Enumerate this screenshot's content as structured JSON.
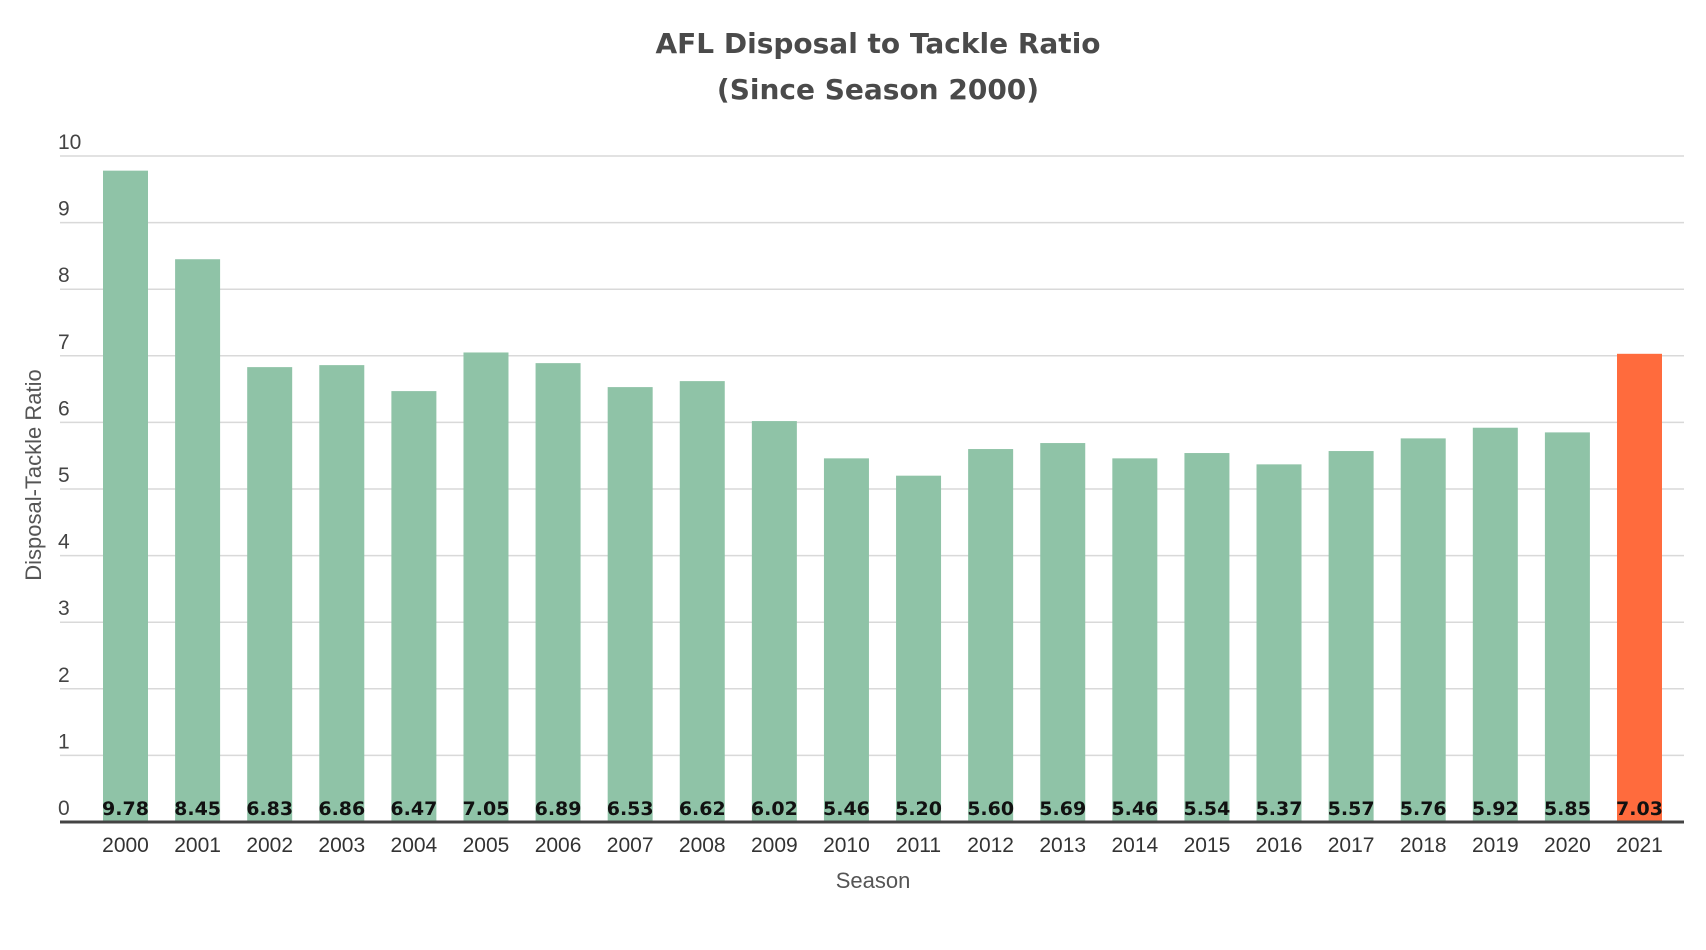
{
  "chart_data": {
    "type": "bar",
    "title": "AFL Disposal to Tackle Ratio",
    "subtitle": "(Since Season 2000)",
    "xlabel": "Season",
    "ylabel": "Disposal-Tackle Ratio",
    "ylim": [
      0,
      10
    ],
    "y_ticks": [
      "0",
      "1",
      "2",
      "3",
      "4",
      "5",
      "6",
      "7",
      "8",
      "9",
      "10"
    ],
    "grid": true,
    "legend": "none",
    "categories": [
      "2000",
      "2001",
      "2002",
      "2003",
      "2004",
      "2005",
      "2006",
      "2007",
      "2008",
      "2009",
      "2010",
      "2011",
      "2012",
      "2013",
      "2014",
      "2015",
      "2016",
      "2017",
      "2018",
      "2019",
      "2020",
      "2021"
    ],
    "values": [
      9.78,
      8.45,
      6.83,
      6.86,
      6.47,
      7.05,
      6.89,
      6.53,
      6.62,
      6.02,
      5.46,
      5.2,
      5.6,
      5.69,
      5.46,
      5.54,
      5.37,
      5.57,
      5.76,
      5.92,
      5.85,
      7.03
    ],
    "value_labels": [
      "9.78",
      "8.45",
      "6.83",
      "6.86",
      "6.47",
      "7.05",
      "6.89",
      "6.53",
      "6.62",
      "6.02",
      "5.46",
      "5.20",
      "5.60",
      "5.69",
      "5.46",
      "5.54",
      "5.37",
      "5.57",
      "5.76",
      "5.92",
      "5.85",
      "7.03"
    ],
    "bar_color": "#8fc3a7",
    "highlight_color": "#ff6b3d",
    "highlight_index": 21
  }
}
